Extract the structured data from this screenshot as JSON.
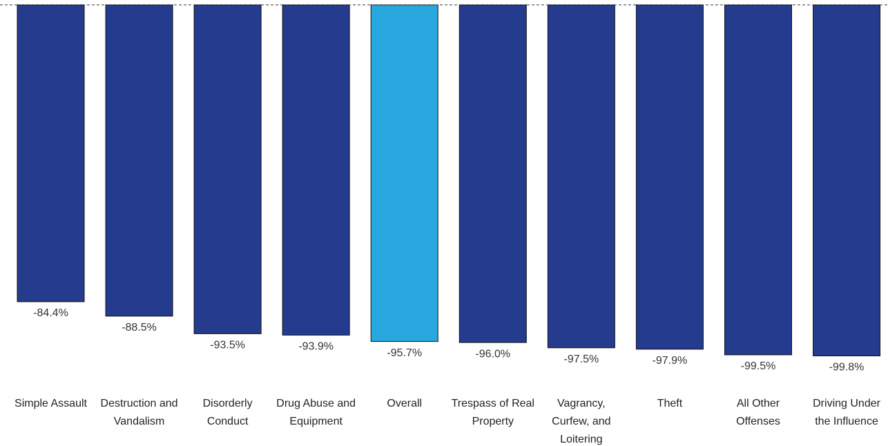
{
  "chart_data": {
    "type": "bar",
    "categories": [
      "Simple Assault",
      "Destruction and Vandalism",
      "Disorderly Conduct",
      "Drug Abuse and Equipment",
      "Overall",
      "Trespass of Real Property",
      "Vagrancy, Curfew, and Loitering",
      "Theft",
      "All Other Offenses",
      "Driving Under the Influence"
    ],
    "values": [
      -84.4,
      -88.5,
      -93.5,
      -93.9,
      -95.7,
      -96.0,
      -97.5,
      -97.9,
      -99.5,
      -99.8
    ],
    "value_labels": [
      "-84.4%",
      "-88.5%",
      "-93.5%",
      "-93.9%",
      "-95.7%",
      "-96.0%",
      "-97.5%",
      "-97.9%",
      "-99.5%",
      "-99.8%"
    ],
    "colors": [
      "#253b8e",
      "#253b8e",
      "#253b8e",
      "#253b8e",
      "#29a7df",
      "#253b8e",
      "#253b8e",
      "#253b8e",
      "#253b8e",
      "#253b8e"
    ],
    "ylim": [
      -100,
      0
    ]
  }
}
